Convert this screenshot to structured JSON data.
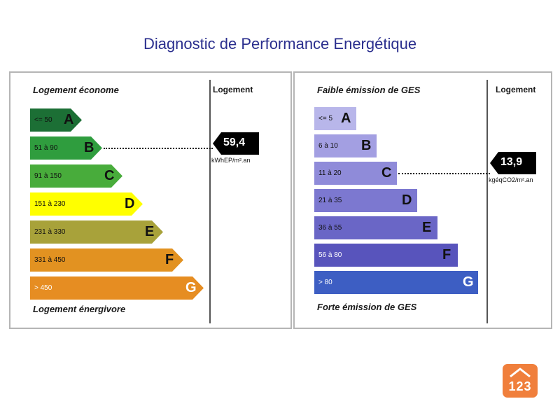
{
  "title": "Diagnostic de Performance Energétique",
  "chart_data": [
    {
      "type": "bar",
      "name": "dpe",
      "top_label": "Logement économe",
      "bottom_label": "Logement énergivore",
      "column_header": "Logement",
      "categories": [
        "A",
        "B",
        "C",
        "D",
        "E",
        "F",
        "G"
      ],
      "ranges": [
        "<= 50",
        "51 à 90",
        "91 à 150",
        "151 à 230",
        "231 à 330",
        "331 à 450",
        "> 450"
      ],
      "colors": [
        "#1c6f35",
        "#2f9d3e",
        "#48ac3b",
        "#ffff00",
        "#a8a23a",
        "#e29221",
        "#e68d22"
      ],
      "value": {
        "number": "59,4",
        "unit": "kWhEP/m².an",
        "class": "B"
      }
    },
    {
      "type": "bar",
      "name": "ges",
      "top_label": "Faible émission de GES",
      "bottom_label": "Forte émission de GES",
      "column_header": "Logement",
      "categories": [
        "A",
        "B",
        "C",
        "D",
        "E",
        "F",
        "G"
      ],
      "ranges": [
        "<= 5",
        "6 à 10",
        "11 à 20",
        "21 à 35",
        "36 à 55",
        "56 à 80",
        "> 80"
      ],
      "colors": [
        "#b8b6ea",
        "#a39fe2",
        "#8f8bd9",
        "#7c78d0",
        "#6a66c6",
        "#5854bc",
        "#3d5ec3"
      ],
      "value": {
        "number": "13,9",
        "unit": "kgéqCO2/m².an",
        "class": "C"
      }
    }
  ],
  "logo": {
    "text": "123",
    "color": "#f07f3c"
  }
}
